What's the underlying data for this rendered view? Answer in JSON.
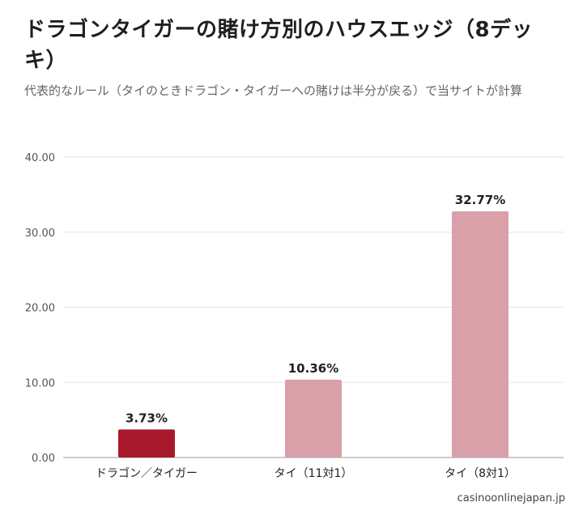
{
  "chart_data": {
    "type": "bar",
    "title": "ドラゴンタイガーの賭け方別のハウスエッジ（8デッキ）",
    "subtitle": "代表的なルール（タイのときドラゴン・タイガーへの賭けは半分が戻る）で当サイトが計算",
    "categories": [
      "ドラゴン／タイガー",
      "タイ（11対1）",
      "タイ（8対1）"
    ],
    "values": [
      3.73,
      10.36,
      32.77
    ],
    "data_labels": [
      "3.73%",
      "10.36%",
      "32.77%"
    ],
    "bar_colors": [
      "#a8192e",
      "#d9a0aa",
      "#d9a0aa"
    ],
    "yticks": [
      "0.00",
      "10.00",
      "20.00",
      "30.00",
      "40.00"
    ],
    "ylim": [
      0,
      40
    ],
    "grid": true,
    "xlabel": "",
    "ylabel": ""
  },
  "source": "casinoonlinejapan.jp"
}
